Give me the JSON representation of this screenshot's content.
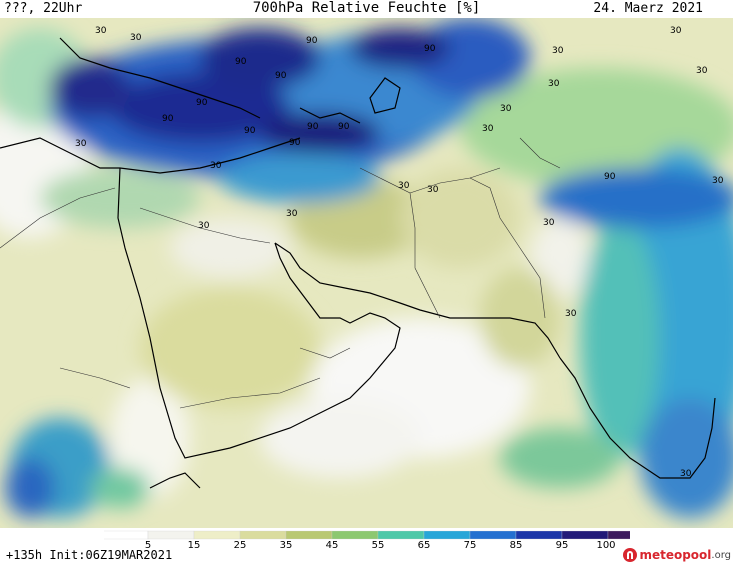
{
  "header": {
    "left": "???, 22Uhr",
    "title": "700hPa Relative Feuchte [%]",
    "date": "24. Maerz 2021"
  },
  "map": {
    "contour_labels": [
      "30",
      "30",
      "30",
      "30",
      "30",
      "30",
      "30",
      "30",
      "30",
      "30",
      "30",
      "30",
      "30",
      "30",
      "30",
      "30",
      "30",
      "30",
      "90",
      "90",
      "90",
      "90",
      "90",
      "90",
      "90",
      "90",
      "90",
      "90",
      "90"
    ]
  },
  "colorbar": {
    "ticks": [
      "5",
      "15",
      "25",
      "35",
      "45",
      "55",
      "65",
      "75",
      "85",
      "95",
      "100"
    ],
    "colors": [
      "#ffffff",
      "#f3f3ee",
      "#eeeec8",
      "#dadc9e",
      "#b9c872",
      "#8cc870",
      "#4ec8a8",
      "#28a6d8",
      "#2470d0",
      "#1c36a8",
      "#221a78",
      "#3c1a5c"
    ]
  },
  "footer": {
    "run_info": "+135h Init:06Z19MAR2021",
    "brand_main": "meteopool",
    "brand_org": ".org"
  }
}
